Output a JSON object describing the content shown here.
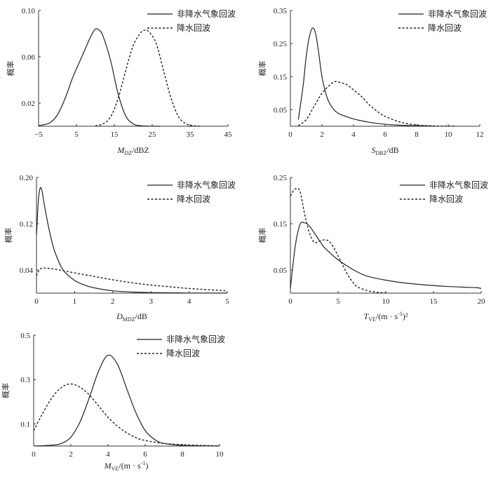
{
  "chart_data": [
    {
      "type": "line",
      "ylabel": "概率",
      "xlabel_main": "M",
      "xlabel_sub": "DZ",
      "xlabel_unit": "/dBZ",
      "xlabel_sup": "",
      "xlim": [
        -5,
        45
      ],
      "ylim": [
        0,
        0.1
      ],
      "xticks": [
        -5,
        5,
        15,
        25,
        35,
        45
      ],
      "xtick_labels": [
        "−5",
        "5",
        "15",
        "25",
        "35",
        "45"
      ],
      "yticks": [
        0.02,
        0.06,
        0.1
      ],
      "ytick_labels": [
        "0.02",
        "0.06",
        "0.10"
      ],
      "series": [
        {
          "name": "非降水气象回波",
          "style": "solid",
          "x": [
            -5,
            -2,
            0,
            2,
            4,
            6,
            8,
            9,
            10,
            11,
            12,
            14,
            16,
            18,
            20,
            22,
            24,
            26,
            27
          ],
          "y": [
            0.0005,
            0.003,
            0.01,
            0.024,
            0.042,
            0.057,
            0.072,
            0.079,
            0.084,
            0.083,
            0.078,
            0.057,
            0.028,
            0.009,
            0.002,
            0.0005,
            0.0001,
            0,
            0
          ]
        },
        {
          "name": "降水回波",
          "style": "dashed",
          "x": [
            10,
            12,
            14,
            16,
            18,
            20,
            22,
            23,
            24,
            26,
            28,
            30,
            32,
            34,
            36,
            38
          ],
          "y": [
            0.0003,
            0.002,
            0.008,
            0.024,
            0.048,
            0.07,
            0.081,
            0.083,
            0.082,
            0.072,
            0.048,
            0.024,
            0.008,
            0.002,
            0.0004,
            0
          ]
        }
      ]
    },
    {
      "type": "line",
      "ylabel": "概率",
      "xlabel_main": "S",
      "xlabel_sub": "DBZ",
      "xlabel_unit": "/dB",
      "xlabel_sup": "",
      "xlim": [
        0,
        12
      ],
      "ylim": [
        0,
        0.35
      ],
      "xticks": [
        0,
        2,
        4,
        6,
        8,
        10,
        12
      ],
      "xtick_labels": [
        "0",
        "2",
        "4",
        "6",
        "8",
        "10",
        "12"
      ],
      "yticks": [
        0.05,
        0.15,
        0.25,
        0.35
      ],
      "ytick_labels": [
        "0.05",
        "0.15",
        "0.25",
        "0.35"
      ],
      "series": [
        {
          "name": "非降水气象回波",
          "style": "solid",
          "x": [
            0.5,
            0.8,
            1.0,
            1.2,
            1.4,
            1.6,
            1.8,
            2.0,
            2.3,
            2.6,
            3.0,
            3.5,
            4.0,
            5.0,
            6.0,
            7.0,
            8.0,
            9.0
          ],
          "y": [
            0.02,
            0.12,
            0.21,
            0.27,
            0.297,
            0.28,
            0.22,
            0.15,
            0.09,
            0.06,
            0.04,
            0.03,
            0.022,
            0.012,
            0.006,
            0.003,
            0.0015,
            0.0005
          ]
        },
        {
          "name": "降水回波",
          "style": "dashed",
          "x": [
            0.5,
            1.0,
            1.5,
            2.0,
            2.5,
            2.8,
            3.2,
            3.6,
            4.0,
            4.5,
            5.0,
            5.5,
            6.0,
            7.0,
            8.0,
            9.0,
            10.0,
            10.5
          ],
          "y": [
            0.002,
            0.02,
            0.06,
            0.1,
            0.125,
            0.135,
            0.132,
            0.125,
            0.11,
            0.09,
            0.065,
            0.045,
            0.03,
            0.012,
            0.004,
            0.001,
            0.0002,
            0
          ]
        }
      ]
    },
    {
      "type": "line",
      "ylabel": "概率",
      "xlabel_main": "D",
      "xlabel_sub": "MDZ",
      "xlabel_unit": "/dB",
      "xlabel_sup": "",
      "xlim": [
        0,
        5
      ],
      "ylim": [
        0,
        0.2
      ],
      "xticks": [
        0,
        1,
        2,
        3,
        4,
        5
      ],
      "xtick_labels": [
        "0",
        "1",
        "2",
        "3",
        "4",
        "5"
      ],
      "yticks": [
        0.04,
        0.12,
        0.2
      ],
      "ytick_labels": [
        "0.04",
        "0.12",
        "0.20"
      ],
      "series": [
        {
          "name": "非降水气象回波",
          "style": "solid",
          "x": [
            0,
            0.05,
            0.1,
            0.15,
            0.2,
            0.3,
            0.4,
            0.5,
            0.7,
            1.0,
            1.3,
            1.6,
            2.0,
            2.5,
            3.0,
            4.0,
            5.0
          ],
          "y": [
            0.1,
            0.16,
            0.182,
            0.175,
            0.155,
            0.12,
            0.09,
            0.068,
            0.04,
            0.022,
            0.013,
            0.008,
            0.004,
            0.002,
            0.001,
            0.0003,
            0.0001
          ]
        },
        {
          "name": "降水回波",
          "style": "dashed",
          "x": [
            0,
            0.1,
            0.3,
            0.6,
            1.0,
            1.5,
            2.0,
            2.5,
            3.0,
            3.5,
            4.0,
            4.5,
            5.0
          ],
          "y": [
            0.03,
            0.042,
            0.043,
            0.04,
            0.035,
            0.029,
            0.023,
            0.018,
            0.014,
            0.011,
            0.008,
            0.006,
            0.004
          ]
        }
      ]
    },
    {
      "type": "line",
      "ylabel": "概率",
      "xlabel_main": "T",
      "xlabel_sub": "VE",
      "xlabel_unit": "/(m · s",
      "xlabel_sup": "-1",
      "xlabel_tail": ")²",
      "xlim": [
        0,
        20
      ],
      "ylim": [
        0,
        0.25
      ],
      "xticks": [
        0,
        5,
        10,
        15,
        20
      ],
      "xtick_labels": [
        "0",
        "5",
        "10",
        "15",
        "20"
      ],
      "yticks": [
        0.05,
        0.15,
        0.25
      ],
      "ytick_labels": [
        "0.05",
        "0.15",
        "0.25"
      ],
      "series": [
        {
          "name": "非降水气象回波",
          "style": "solid",
          "x": [
            0,
            0.5,
            1.0,
            1.5,
            2.0,
            2.5,
            3.0,
            3.5,
            4.0,
            5.0,
            6.0,
            7.0,
            8.0,
            10.0,
            12.0,
            14.0,
            16.0,
            18.0,
            19.5,
            20.0
          ],
          "y": [
            0.01,
            0.1,
            0.148,
            0.152,
            0.145,
            0.13,
            0.115,
            0.1,
            0.09,
            0.072,
            0.058,
            0.046,
            0.037,
            0.028,
            0.022,
            0.018,
            0.015,
            0.013,
            0.012,
            0.01
          ]
        },
        {
          "name": "降水回波",
          "style": "dashed",
          "x": [
            0,
            0.5,
            1.0,
            1.5,
            2.0,
            2.5,
            3.0,
            3.5,
            4.0,
            4.5,
            5.0,
            5.5,
            6.0,
            6.5,
            7.0,
            8.0,
            9.0,
            10.0
          ],
          "y": [
            0.21,
            0.225,
            0.22,
            0.17,
            0.13,
            0.11,
            0.112,
            0.115,
            0.113,
            0.1,
            0.08,
            0.06,
            0.04,
            0.025,
            0.014,
            0.006,
            0.002,
            0.0005
          ]
        }
      ]
    },
    {
      "type": "line",
      "ylabel": "概率",
      "xlabel_main": "M",
      "xlabel_sub": "VE",
      "xlabel_unit": "/(m · s",
      "xlabel_sup": "-1",
      "xlabel_tail": ")",
      "xlim": [
        0,
        10
      ],
      "ylim": [
        0,
        0.5
      ],
      "xticks": [
        0,
        2,
        4,
        6,
        8,
        10
      ],
      "xtick_labels": [
        "0",
        "2",
        "4",
        "6",
        "8",
        "10"
      ],
      "yticks": [
        0.1,
        0.3,
        0.5
      ],
      "ytick_labels": [
        "0.1",
        "0.3",
        "0.5"
      ],
      "series": [
        {
          "name": "非降水气象回波",
          "style": "solid",
          "x": [
            0,
            1.0,
            1.5,
            2.0,
            2.5,
            3.0,
            3.5,
            4.0,
            4.5,
            5.0,
            5.5,
            6.0,
            6.5,
            7.0,
            8.0,
            9.0,
            10.0
          ],
          "y": [
            0,
            0.004,
            0.012,
            0.04,
            0.11,
            0.22,
            0.34,
            0.41,
            0.37,
            0.26,
            0.15,
            0.07,
            0.03,
            0.012,
            0.003,
            0.001,
            0
          ]
        },
        {
          "name": "降水回波",
          "style": "dashed",
          "x": [
            0,
            0.5,
            1.0,
            1.5,
            2.0,
            2.5,
            3.0,
            3.5,
            4.0,
            4.5,
            5.0,
            5.5,
            6.0,
            7.0,
            8.0,
            9.0,
            10.0
          ],
          "y": [
            0.07,
            0.15,
            0.22,
            0.265,
            0.28,
            0.265,
            0.23,
            0.18,
            0.13,
            0.09,
            0.06,
            0.038,
            0.025,
            0.012,
            0.006,
            0.003,
            0.001
          ]
        }
      ]
    }
  ]
}
